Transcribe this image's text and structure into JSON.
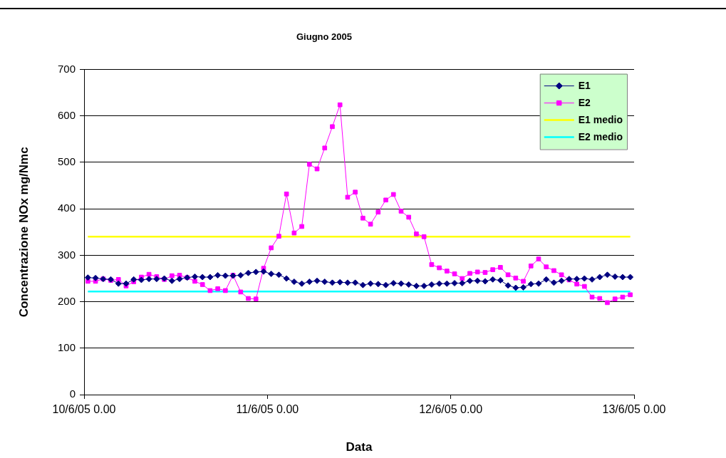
{
  "chart_data": {
    "type": "line",
    "title": "Giugno 2005",
    "xlabel": "Data",
    "ylabel": "Concentrazione NOx mg/Nmc",
    "x": [
      "2005-06-10T00:30",
      "2005-06-10T01:30",
      "2005-06-10T02:30",
      "2005-06-10T03:30",
      "2005-06-10T04:30",
      "2005-06-10T05:30",
      "2005-06-10T06:30",
      "2005-06-10T07:30",
      "2005-06-10T08:30",
      "2005-06-10T09:30",
      "2005-06-10T10:30",
      "2005-06-10T11:30",
      "2005-06-10T12:30",
      "2005-06-10T13:30",
      "2005-06-10T14:30",
      "2005-06-10T15:30",
      "2005-06-10T16:30",
      "2005-06-10T17:30",
      "2005-06-10T18:30",
      "2005-06-10T19:30",
      "2005-06-10T20:30",
      "2005-06-10T21:30",
      "2005-06-10T22:30",
      "2005-06-10T23:30",
      "2005-06-11T00:30",
      "2005-06-11T01:30",
      "2005-06-11T02:30",
      "2005-06-11T03:30",
      "2005-06-11T04:30",
      "2005-06-11T05:30",
      "2005-06-11T06:30",
      "2005-06-11T07:30",
      "2005-06-11T08:30",
      "2005-06-11T09:30",
      "2005-06-11T10:30",
      "2005-06-11T11:30",
      "2005-06-11T12:30",
      "2005-06-11T13:30",
      "2005-06-11T14:30",
      "2005-06-11T15:30",
      "2005-06-11T16:30",
      "2005-06-11T17:30",
      "2005-06-11T18:30",
      "2005-06-11T19:30",
      "2005-06-11T20:30",
      "2005-06-11T21:30",
      "2005-06-11T22:30",
      "2005-06-11T23:30",
      "2005-06-12T00:30",
      "2005-06-12T01:30",
      "2005-06-12T02:30",
      "2005-06-12T03:30",
      "2005-06-12T04:30",
      "2005-06-12T05:30",
      "2005-06-12T06:30",
      "2005-06-12T07:30",
      "2005-06-12T08:30",
      "2005-06-12T09:30",
      "2005-06-12T10:30",
      "2005-06-12T11:30",
      "2005-06-12T12:30",
      "2005-06-12T13:30",
      "2005-06-12T14:30",
      "2005-06-12T15:30",
      "2005-06-12T16:30",
      "2005-06-12T17:30",
      "2005-06-12T18:30",
      "2005-06-12T19:30",
      "2005-06-12T20:30",
      "2005-06-12T21:30",
      "2005-06-12T22:30",
      "2005-06-12T23:30"
    ],
    "series": [
      {
        "name": "E1",
        "color": "#000080",
        "marker": "diamond",
        "values": [
          252,
          251,
          249,
          248,
          239,
          239,
          248,
          247,
          249,
          249,
          250,
          245,
          249,
          252,
          254,
          253,
          253,
          257,
          256,
          256,
          257,
          262,
          264,
          265,
          260,
          258,
          250,
          243,
          239,
          243,
          245,
          243,
          241,
          242,
          241,
          241,
          236,
          239,
          238,
          236,
          240,
          239,
          237,
          234,
          234,
          237,
          239,
          239,
          240,
          240,
          245,
          245,
          244,
          248,
          246,
          235,
          230,
          231,
          238,
          239,
          248,
          241,
          245,
          249,
          249,
          250,
          248,
          253,
          258,
          254,
          253,
          253
        ]
      },
      {
        "name": "E2",
        "color": "#ff00ff",
        "marker": "square",
        "values": [
          244,
          244,
          249,
          246,
          248,
          234,
          243,
          253,
          259,
          254,
          248,
          256,
          257,
          252,
          244,
          237,
          224,
          228,
          224,
          257,
          221,
          207,
          206,
          272,
          316,
          341,
          432,
          348,
          362,
          496,
          486,
          531,
          577,
          624,
          425,
          436,
          380,
          367,
          393,
          419,
          431,
          395,
          382,
          346,
          340,
          280,
          273,
          266,
          260,
          250,
          261,
          264,
          263,
          269,
          274,
          258,
          251,
          244,
          277,
          292,
          275,
          267,
          258,
          247,
          238,
          233,
          210,
          207,
          198,
          206,
          210,
          215
        ]
      },
      {
        "name": "E1 medio",
        "color": "#ffff00",
        "marker": "none",
        "x": [
          "2005-06-10T00:30",
          "2005-06-12T23:30"
        ],
        "values": [
          340,
          340
        ]
      },
      {
        "name": "E2 medio",
        "color": "#00ffff",
        "marker": "none",
        "x": [
          "2005-06-10T00:30",
          "2005-06-12T23:30"
        ],
        "values": [
          222,
          222
        ]
      }
    ],
    "xlim": [
      "2005-06-10T00:00",
      "2005-06-13T00:00"
    ],
    "xticks": [
      {
        "value": "2005-06-10T00:00",
        "label": "10/6/05 0.00"
      },
      {
        "value": "2005-06-11T00:00",
        "label": "11/6/05 0.00"
      },
      {
        "value": "2005-06-12T00:00",
        "label": "12/6/05 0.00"
      },
      {
        "value": "2005-06-13T00:00",
        "label": "13/6/05 0.00"
      }
    ],
    "ylim": [
      0,
      700
    ],
    "yticks": [
      0,
      100,
      200,
      300,
      400,
      500,
      600,
      700
    ],
    "grid": "y",
    "legend": "top right",
    "line_style": "solid"
  }
}
